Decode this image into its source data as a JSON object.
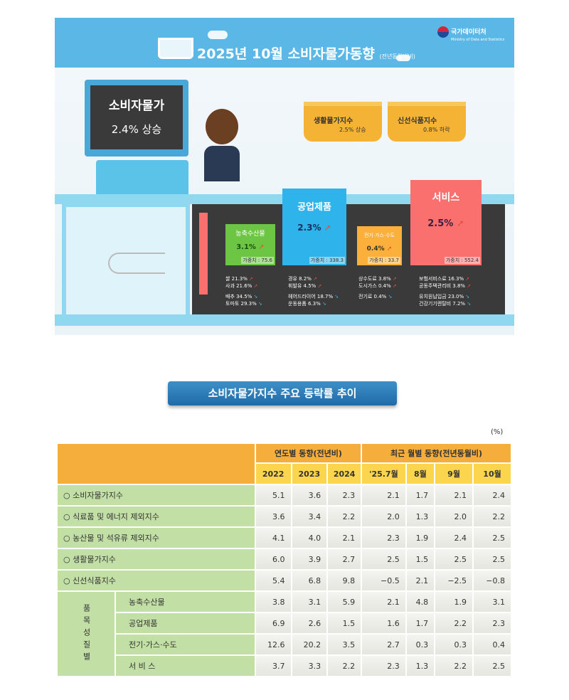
{
  "infographic": {
    "title": "2025년 10월 소비자물가동향",
    "title_note": "(전년동월대비)",
    "agency": "국가데이터처",
    "agency_en": "Ministry of Data and Statistics",
    "cpi": {
      "label": "소비자물가",
      "value": "2.4% 상승"
    },
    "baskets": [
      {
        "label": "생활물가지수",
        "value": "2.5% 상승"
      },
      {
        "label": "신선식품지수",
        "value": "0.8% 하락"
      }
    ],
    "categories": [
      {
        "name": "농축수산물",
        "rate": "3.1%",
        "weight": "가중치 : 75.6",
        "color": "#6cc644",
        "up": [
          "쌀 21.3%",
          "사과 21.6%"
        ],
        "down": [
          "배추 34.5%",
          "토마토 29.3%"
        ]
      },
      {
        "name": "공업제품",
        "rate": "2.3%",
        "weight": "가중치 : 338.3",
        "color": "#2eb3ea",
        "up": [
          "경유 8.2%",
          "휘발유 4.5%"
        ],
        "down": [
          "헤어드라이어 18.7%",
          "운동용품 6.3%"
        ]
      },
      {
        "name": "전기·가스·수도",
        "rate": "0.4%",
        "weight": "가중치 : 33.7",
        "color": "#fbb03b",
        "up": [
          "상수도료 3.8%",
          "도시가스 0.4%"
        ],
        "down": [
          "전기료 0.4%"
        ]
      },
      {
        "name": "서비스",
        "rate": "2.5%",
        "weight": "가중치 : 552.4",
        "color": "#f9706f",
        "up": [
          "보험서비스료 16.3%",
          "공동주택관리비 3.8%"
        ],
        "down": [
          "유치원납입금 23.0%",
          "건강기기렌탈비 7.2%"
        ]
      }
    ]
  },
  "section_heading": "소비자물가지수 주요 등락률 추이",
  "table": {
    "unit": "(%)",
    "group_headers": [
      "연도별 동향(전년비)",
      "최근 월별 동향(전년동월비)"
    ],
    "columns": [
      "2022",
      "2023",
      "2024",
      "'25.7월",
      "8월",
      "9월",
      "10월"
    ],
    "rows": [
      {
        "label": "○ 소비자물가지수",
        "values": [
          "5.1",
          "3.6",
          "2.3",
          "2.1",
          "1.7",
          "2.1",
          "2.4"
        ]
      },
      {
        "label": "○ 식료품 및 에너지 제외지수",
        "values": [
          "3.6",
          "3.4",
          "2.2",
          "2.0",
          "1.3",
          "2.0",
          "2.2"
        ]
      },
      {
        "label": "○ 농산물 및 석유류 제외지수",
        "values": [
          "4.1",
          "4.0",
          "2.1",
          "2.3",
          "1.9",
          "2.4",
          "2.5"
        ]
      },
      {
        "label": "○ 생활물가지수",
        "values": [
          "6.0",
          "3.9",
          "2.7",
          "2.5",
          "1.5",
          "2.5",
          "2.5"
        ]
      },
      {
        "label": "○ 신선식품지수",
        "values": [
          "5.4",
          "6.8",
          "9.8",
          "−0.5",
          "2.1",
          "−2.5",
          "−0.8"
        ]
      }
    ],
    "group_label": "품목성질별",
    "group_rows": [
      {
        "label": "농축수산물",
        "values": [
          "3.8",
          "3.1",
          "5.9",
          "2.1",
          "4.8",
          "1.9",
          "3.1"
        ]
      },
      {
        "label": "공업제품",
        "values": [
          "6.9",
          "2.6",
          "1.5",
          "1.6",
          "1.7",
          "2.2",
          "2.3"
        ]
      },
      {
        "label": "전기·가스·수도",
        "values": [
          "12.6",
          "20.2",
          "3.5",
          "2.7",
          "0.3",
          "0.3",
          "0.4"
        ]
      },
      {
        "label": "서 비 스",
        "values": [
          "3.7",
          "3.3",
          "2.2",
          "2.3",
          "1.3",
          "2.2",
          "2.5"
        ]
      }
    ]
  }
}
